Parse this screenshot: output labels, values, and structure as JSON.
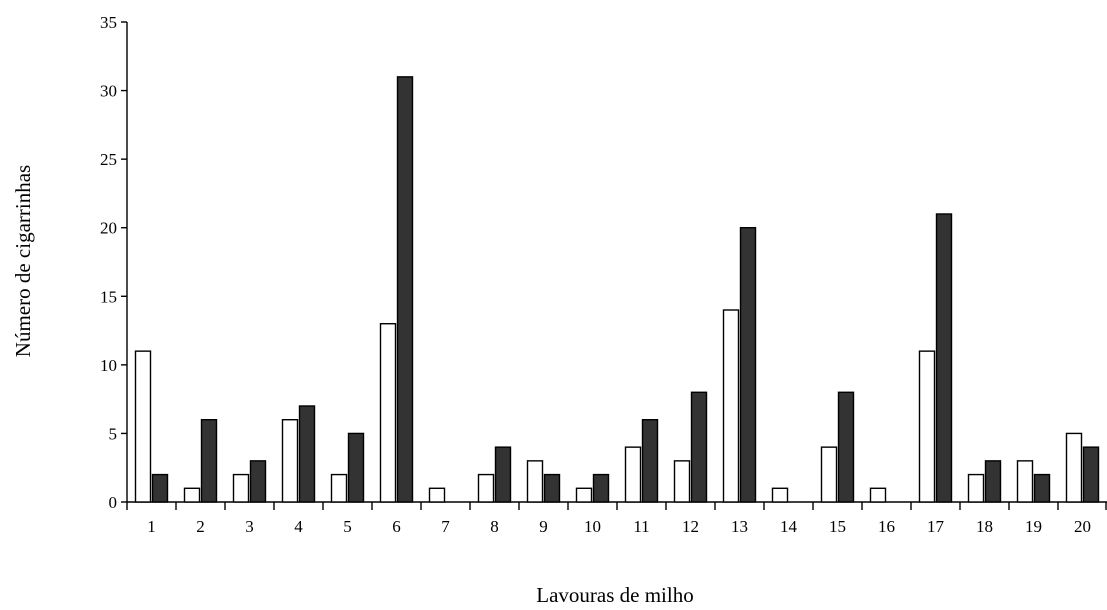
{
  "chart_data": {
    "type": "bar",
    "title": "",
    "xlabel": "Lavouras de milho",
    "ylabel": "Número de cigarrinhas",
    "ylim": [
      0,
      35
    ],
    "yticks": [
      0,
      5,
      10,
      15,
      20,
      25,
      30,
      35
    ],
    "grid": false,
    "legend": "none",
    "categories": [
      "1",
      "2",
      "3",
      "4",
      "5",
      "6",
      "7",
      "8",
      "9",
      "10",
      "11",
      "12",
      "13",
      "14",
      "15",
      "16",
      "17",
      "18",
      "19",
      "20"
    ],
    "series": [
      {
        "fill": "#ffffff",
        "stroke": "#000000",
        "values": [
          11,
          1,
          2,
          6,
          2,
          13,
          1,
          2,
          3,
          1,
          4,
          3,
          14,
          1,
          4,
          1,
          11,
          2,
          3,
          5
        ]
      },
      {
        "fill": "#333333",
        "stroke": "#000000",
        "values": [
          2,
          6,
          3,
          7,
          5,
          31,
          0,
          4,
          2,
          2,
          6,
          8,
          20,
          0,
          8,
          0,
          21,
          3,
          2,
          4
        ]
      }
    ]
  }
}
